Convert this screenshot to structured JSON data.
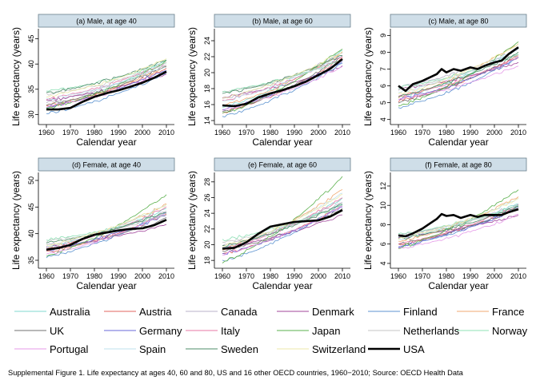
{
  "caption": "Supplemental Figure 1. Life expectancy at ages 40, 60 and 80, US and 16 other OECD countries, 1960−2010; Source: OECD Health Data",
  "shared_xlabel": "Calendar year",
  "shared_ylabel": "Life expectancy (years)",
  "legend": [
    {
      "name": "Australia",
      "color": "#7fd8cf",
      "width": 1
    },
    {
      "name": "Austria",
      "color": "#e0665f",
      "width": 1
    },
    {
      "name": "Canada",
      "color": "#b8b2c8",
      "width": 1
    },
    {
      "name": "Denmark",
      "color": "#a0449a",
      "width": 1
    },
    {
      "name": "Finland",
      "color": "#5c93d0",
      "width": 1
    },
    {
      "name": "France",
      "color": "#f0a870",
      "width": 1
    },
    {
      "name": "UK",
      "color": "#707070",
      "width": 1
    },
    {
      "name": "Germany",
      "color": "#6a6ad8",
      "width": 1
    },
    {
      "name": "Italy",
      "color": "#e777a6",
      "width": 1
    },
    {
      "name": "Japan",
      "color": "#5ab04c",
      "width": 1
    },
    {
      "name": "Netherlands",
      "color": "#c6c6c6",
      "width": 1
    },
    {
      "name": "Norway",
      "color": "#8fe0b6",
      "width": 1
    },
    {
      "name": "Portugal",
      "color": "#e59ae8",
      "width": 1
    },
    {
      "name": "Spain",
      "color": "#bfe0ee",
      "width": 1
    },
    {
      "name": "Sweden",
      "color": "#4e8c6a",
      "width": 1
    },
    {
      "name": "Switzerland",
      "color": "#eeeaaa",
      "width": 1
    },
    {
      "name": "USA",
      "color": "#000000",
      "width": 2.6
    }
  ],
  "chart_data": [
    {
      "type": "line",
      "title": "(a) Male, at age 40",
      "xlabel": "Calendar year",
      "ylabel": "Life expectancy (years)",
      "x_ticks": [
        1960,
        1970,
        1980,
        1990,
        2000,
        2010
      ],
      "xlim": [
        1960,
        2010
      ],
      "y_ticks": [
        30,
        35,
        40,
        45
      ],
      "ylim": [
        28,
        47
      ],
      "grid": false,
      "usa": {
        "x": [
          1960,
          1965,
          1970,
          1975,
          1980,
          1985,
          1990,
          1995,
          2000,
          2005,
          2010
        ],
        "y": [
          31.0,
          31.0,
          31.3,
          32.5,
          33.5,
          34.2,
          34.8,
          35.5,
          36.3,
          37.3,
          38.5
        ]
      },
      "others": [
        {
          "name": "Australia",
          "start": 31.5,
          "end": 40.8
        },
        {
          "name": "Austria",
          "start": 31.5,
          "end": 39.2
        },
        {
          "name": "Canada",
          "start": 32.5,
          "end": 39.8
        },
        {
          "name": "Denmark",
          "start": 32.8,
          "end": 38.0
        },
        {
          "name": "Finland",
          "start": 30.2,
          "end": 38.2
        },
        {
          "name": "France",
          "start": 31.8,
          "end": 39.5
        },
        {
          "name": "UK",
          "start": 31.8,
          "end": 39.6
        },
        {
          "name": "Germany",
          "start": 31.5,
          "end": 38.8
        },
        {
          "name": "Italy",
          "start": 33.0,
          "end": 40.2
        },
        {
          "name": "Japan",
          "start": 31.2,
          "end": 40.6
        },
        {
          "name": "Netherlands",
          "start": 34.0,
          "end": 39.8
        },
        {
          "name": "Norway",
          "start": 34.5,
          "end": 40.2
        },
        {
          "name": "Portugal",
          "start": 31.5,
          "end": 38.3
        },
        {
          "name": "Spain",
          "start": 33.0,
          "end": 39.5
        },
        {
          "name": "Sweden",
          "start": 34.2,
          "end": 40.8
        },
        {
          "name": "Switzerland",
          "start": 33.5,
          "end": 41.0
        }
      ]
    },
    {
      "type": "line",
      "title": "(b) Male, at age 60",
      "xlabel": "Calendar year",
      "ylabel": "Life expectancy (years)",
      "x_ticks": [
        1960,
        1970,
        1980,
        1990,
        2000,
        2010
      ],
      "xlim": [
        1960,
        2010
      ],
      "y_ticks": [
        14,
        16,
        18,
        20,
        22,
        24
      ],
      "ylim": [
        13.5,
        25.5
      ],
      "grid": false,
      "usa": {
        "x": [
          1960,
          1965,
          1970,
          1975,
          1980,
          1985,
          1990,
          1995,
          2000,
          2005,
          2010
        ],
        "y": [
          15.9,
          15.8,
          16.1,
          16.9,
          17.4,
          17.8,
          18.3,
          18.9,
          19.7,
          20.5,
          21.7
        ]
      },
      "others": [
        {
          "name": "Australia",
          "start": 15.6,
          "end": 22.8
        },
        {
          "name": "Austria",
          "start": 15.0,
          "end": 21.8
        },
        {
          "name": "Canada",
          "start": 16.8,
          "end": 22.5
        },
        {
          "name": "Denmark",
          "start": 16.9,
          "end": 20.8
        },
        {
          "name": "Finland",
          "start": 14.5,
          "end": 21.2
        },
        {
          "name": "France",
          "start": 15.8,
          "end": 22.6
        },
        {
          "name": "UK",
          "start": 15.0,
          "end": 22.0
        },
        {
          "name": "Germany",
          "start": 15.4,
          "end": 21.4
        },
        {
          "name": "Italy",
          "start": 16.5,
          "end": 22.0
        },
        {
          "name": "Japan",
          "start": 14.9,
          "end": 23.0
        },
        {
          "name": "Netherlands",
          "start": 17.5,
          "end": 21.6
        },
        {
          "name": "Norway",
          "start": 17.6,
          "end": 21.6
        },
        {
          "name": "Portugal",
          "start": 15.4,
          "end": 20.8
        },
        {
          "name": "Spain",
          "start": 16.4,
          "end": 22.2
        },
        {
          "name": "Sweden",
          "start": 17.3,
          "end": 22.2
        },
        {
          "name": "Switzerland",
          "start": 16.8,
          "end": 22.6
        }
      ]
    },
    {
      "type": "line",
      "title": "(c) Male, at age 80",
      "xlabel": "Calendar year",
      "ylabel": "Life expectancy (years)",
      "x_ticks": [
        1960,
        1970,
        1980,
        1990,
        2000,
        2010
      ],
      "xlim": [
        1960,
        2010
      ],
      "y_ticks": [
        4,
        5,
        6,
        7,
        8,
        9
      ],
      "ylim": [
        3.7,
        9.4
      ],
      "grid": false,
      "usa": {
        "x": [
          1960,
          1963,
          1966,
          1970,
          1973,
          1976,
          1978,
          1980,
          1983,
          1986,
          1990,
          1993,
          1996,
          2000,
          2003,
          2006,
          2010
        ],
        "y": [
          6.0,
          5.7,
          6.1,
          6.3,
          6.5,
          6.7,
          7.0,
          6.8,
          7.0,
          6.9,
          7.1,
          7.0,
          7.2,
          7.4,
          7.5,
          7.9,
          8.3
        ]
      },
      "others": [
        {
          "name": "Australia",
          "start": 5.3,
          "end": 8.2
        },
        {
          "name": "Austria",
          "start": 5.1,
          "end": 7.8
        },
        {
          "name": "Canada",
          "start": 5.9,
          "end": 8.2
        },
        {
          "name": "Denmark",
          "start": 5.8,
          "end": 7.4
        },
        {
          "name": "Finland",
          "start": 4.7,
          "end": 7.7
        },
        {
          "name": "France",
          "start": 5.3,
          "end": 8.5
        },
        {
          "name": "UK",
          "start": 5.0,
          "end": 7.9
        },
        {
          "name": "Germany",
          "start": 5.2,
          "end": 7.7
        },
        {
          "name": "Italy",
          "start": 5.4,
          "end": 7.7
        },
        {
          "name": "Japan",
          "start": 4.8,
          "end": 8.6
        },
        {
          "name": "Netherlands",
          "start": 5.8,
          "end": 7.9
        },
        {
          "name": "Norway",
          "start": 5.9,
          "end": 7.9
        },
        {
          "name": "Portugal",
          "start": 5.2,
          "end": 7.2
        },
        {
          "name": "Spain",
          "start": 5.6,
          "end": 8.2
        },
        {
          "name": "Sweden",
          "start": 5.4,
          "end": 8.0
        },
        {
          "name": "Switzerland",
          "start": 5.5,
          "end": 8.5
        }
      ]
    },
    {
      "type": "line",
      "title": "(d) Female, at age 40",
      "xlabel": "Calendar year",
      "ylabel": "Life expectancy (years)",
      "x_ticks": [
        1960,
        1970,
        1980,
        1990,
        2000,
        2010
      ],
      "xlim": [
        1960,
        2010
      ],
      "y_ticks": [
        35,
        40,
        45,
        50
      ],
      "ylim": [
        33.5,
        51.5
      ],
      "grid": false,
      "usa": {
        "x": [
          1960,
          1965,
          1970,
          1975,
          1980,
          1985,
          1990,
          1995,
          2000,
          2005,
          2010
        ],
        "y": [
          37.0,
          37.3,
          37.9,
          39.0,
          39.8,
          40.2,
          40.6,
          40.9,
          41.0,
          41.6,
          42.6
        ]
      },
      "others": [
        {
          "name": "Australia",
          "start": 37.4,
          "end": 44.8
        },
        {
          "name": "Austria",
          "start": 36.6,
          "end": 43.7
        },
        {
          "name": "Canada",
          "start": 37.8,
          "end": 44.2
        },
        {
          "name": "Denmark",
          "start": 37.4,
          "end": 41.8
        },
        {
          "name": "Finland",
          "start": 35.6,
          "end": 44.0
        },
        {
          "name": "France",
          "start": 37.2,
          "end": 45.6
        },
        {
          "name": "UK",
          "start": 37.0,
          "end": 42.9
        },
        {
          "name": "Germany",
          "start": 36.9,
          "end": 43.5
        },
        {
          "name": "Italy",
          "start": 37.2,
          "end": 45.0
        },
        {
          "name": "Japan",
          "start": 35.9,
          "end": 47.3
        },
        {
          "name": "Netherlands",
          "start": 38.5,
          "end": 43.5
        },
        {
          "name": "Norway",
          "start": 38.8,
          "end": 43.8
        },
        {
          "name": "Portugal",
          "start": 36.0,
          "end": 43.9
        },
        {
          "name": "Spain",
          "start": 37.4,
          "end": 45.5
        },
        {
          "name": "Sweden",
          "start": 38.2,
          "end": 44.0
        },
        {
          "name": "Switzerland",
          "start": 37.8,
          "end": 45.4
        }
      ]
    },
    {
      "type": "line",
      "title": "(e) Female, at age 60",
      "xlabel": "Calendar year",
      "ylabel": "Life expectancy (years)",
      "x_ticks": [
        1960,
        1970,
        1980,
        1990,
        2000,
        2010
      ],
      "xlim": [
        1960,
        2010
      ],
      "y_ticks": [
        18,
        20,
        22,
        24,
        26,
        28
      ],
      "ylim": [
        17.0,
        29.2
      ],
      "grid": false,
      "usa": {
        "x": [
          1960,
          1965,
          1970,
          1975,
          1980,
          1985,
          1990,
          1995,
          2000,
          2005,
          2010
        ],
        "y": [
          19.5,
          19.6,
          20.3,
          21.4,
          22.3,
          22.6,
          22.9,
          23.0,
          23.1,
          23.6,
          24.4
        ]
      },
      "others": [
        {
          "name": "Australia",
          "start": 19.5,
          "end": 25.9
        },
        {
          "name": "Austria",
          "start": 18.8,
          "end": 25.0
        },
        {
          "name": "Canada",
          "start": 19.9,
          "end": 25.4
        },
        {
          "name": "Denmark",
          "start": 19.6,
          "end": 23.8
        },
        {
          "name": "Finland",
          "start": 17.9,
          "end": 25.2
        },
        {
          "name": "France",
          "start": 19.4,
          "end": 27.0
        },
        {
          "name": "UK",
          "start": 19.2,
          "end": 24.6
        },
        {
          "name": "Germany",
          "start": 18.8,
          "end": 24.8
        },
        {
          "name": "Italy",
          "start": 19.4,
          "end": 26.0
        },
        {
          "name": "Japan",
          "start": 17.8,
          "end": 28.7
        },
        {
          "name": "Netherlands",
          "start": 20.3,
          "end": 25.0
        },
        {
          "name": "Norway",
          "start": 20.6,
          "end": 25.1
        },
        {
          "name": "Portugal",
          "start": 18.8,
          "end": 24.9
        },
        {
          "name": "Spain",
          "start": 19.6,
          "end": 26.6
        },
        {
          "name": "Sweden",
          "start": 19.8,
          "end": 25.2
        },
        {
          "name": "Switzerland",
          "start": 19.8,
          "end": 26.4
        }
      ]
    },
    {
      "type": "line",
      "title": "(f) Female, at age 80",
      "xlabel": "Calendar year",
      "ylabel": "Life expectancy (years)",
      "x_ticks": [
        1960,
        1970,
        1980,
        1990,
        2000,
        2010
      ],
      "xlim": [
        1960,
        2010
      ],
      "y_ticks": [
        4,
        6,
        8,
        10,
        12
      ],
      "ylim": [
        3.5,
        13.4
      ],
      "grid": false,
      "usa": {
        "x": [
          1960,
          1963,
          1966,
          1970,
          1973,
          1976,
          1978,
          1980,
          1983,
          1986,
          1990,
          1993,
          1996,
          2000,
          2003,
          2006,
          2010
        ],
        "y": [
          6.9,
          6.8,
          7.1,
          7.6,
          8.1,
          8.6,
          9.1,
          8.9,
          9.0,
          8.7,
          9.0,
          8.8,
          9.0,
          9.0,
          9.0,
          9.3,
          9.6
        ]
      },
      "others": [
        {
          "name": "Australia",
          "start": 6.6,
          "end": 10.2
        },
        {
          "name": "Austria",
          "start": 5.9,
          "end": 9.8
        },
        {
          "name": "Canada",
          "start": 6.9,
          "end": 10.1
        },
        {
          "name": "Denmark",
          "start": 6.7,
          "end": 9.0
        },
        {
          "name": "Finland",
          "start": 5.7,
          "end": 9.9
        },
        {
          "name": "France",
          "start": 6.2,
          "end": 10.9
        },
        {
          "name": "UK",
          "start": 6.0,
          "end": 9.7
        },
        {
          "name": "Germany",
          "start": 5.8,
          "end": 9.7
        },
        {
          "name": "Italy",
          "start": 6.0,
          "end": 10.0
        },
        {
          "name": "Japan",
          "start": 5.6,
          "end": 11.6
        },
        {
          "name": "Netherlands",
          "start": 6.9,
          "end": 9.9
        },
        {
          "name": "Norway",
          "start": 7.0,
          "end": 10.0
        },
        {
          "name": "Portugal",
          "start": 5.5,
          "end": 9.1
        },
        {
          "name": "Spain",
          "start": 6.5,
          "end": 10.7
        },
        {
          "name": "Sweden",
          "start": 6.5,
          "end": 9.9
        },
        {
          "name": "Switzerland",
          "start": 6.6,
          "end": 10.7
        }
      ]
    }
  ]
}
